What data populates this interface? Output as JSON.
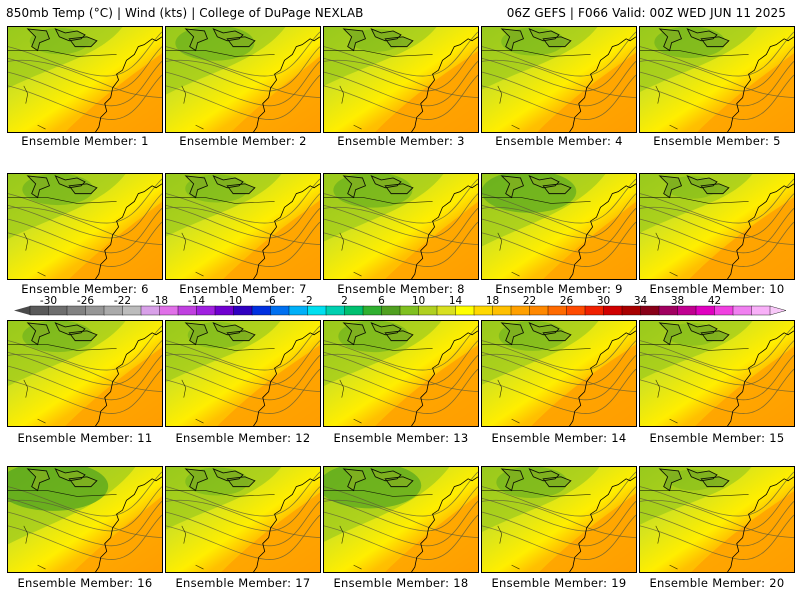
{
  "header": {
    "left": "850mb Temp (°C) | Wind (kts) | College of DuPage NEXLAB",
    "right": "06Z GEFS | F066 Valid: 00Z WED JUN 11 2025"
  },
  "members": [
    {
      "label": "Ensemble Member: 1",
      "warmth": 0.55,
      "cool_core": 0.3
    },
    {
      "label": "Ensemble Member: 2",
      "warmth": 0.35,
      "cool_core": 0.55
    },
    {
      "label": "Ensemble Member: 3",
      "warmth": 0.7,
      "cool_core": 0.2
    },
    {
      "label": "Ensemble Member: 4",
      "warmth": 0.6,
      "cool_core": 0.35
    },
    {
      "label": "Ensemble Member: 5",
      "warmth": 0.55,
      "cool_core": 0.45
    },
    {
      "label": "Ensemble Member: 6",
      "warmth": 0.45,
      "cool_core": 0.45
    },
    {
      "label": "Ensemble Member: 7",
      "warmth": 0.55,
      "cool_core": 0.35
    },
    {
      "label": "Ensemble Member: 8",
      "warmth": 0.45,
      "cool_core": 0.55
    },
    {
      "label": "Ensemble Member: 9",
      "warmth": 0.45,
      "cool_core": 0.75
    },
    {
      "label": "Ensemble Member: 10",
      "warmth": 0.75,
      "cool_core": 0.2
    },
    {
      "label": "Ensemble Member: 11",
      "warmth": 0.55,
      "cool_core": 0.45
    },
    {
      "label": "Ensemble Member: 12",
      "warmth": 0.7,
      "cool_core": 0.3
    },
    {
      "label": "Ensemble Member: 13",
      "warmth": 0.7,
      "cool_core": 0.45
    },
    {
      "label": "Ensemble Member: 14",
      "warmth": 0.75,
      "cool_core": 0.4
    },
    {
      "label": "Ensemble Member: 15",
      "warmth": 0.6,
      "cool_core": 0.2
    },
    {
      "label": "Ensemble Member: 16",
      "warmth": 0.35,
      "cool_core": 0.95
    },
    {
      "label": "Ensemble Member: 17",
      "warmth": 0.6,
      "cool_core": 0.35
    },
    {
      "label": "Ensemble Member: 18",
      "warmth": 0.45,
      "cool_core": 0.85
    },
    {
      "label": "Ensemble Member: 19",
      "warmth": 0.55,
      "cool_core": 0.45
    },
    {
      "label": "Ensemble Member: 20",
      "warmth": 0.7,
      "cool_core": 0.15
    }
  ],
  "colorbar": {
    "tick_labels": [
      "-30",
      "-26",
      "-22",
      "-18",
      "-14",
      "-10",
      "-6",
      "-2",
      "2",
      "6",
      "10",
      "14",
      "18",
      "22",
      "26",
      "30",
      "34",
      "38",
      "42"
    ],
    "colors": [
      "#5a5a5a",
      "#6e6e6e",
      "#828282",
      "#969696",
      "#aaaaaa",
      "#bcbcbc",
      "#d8a0e8",
      "#e070e8",
      "#c040e0",
      "#a020e0",
      "#7000d0",
      "#3000c0",
      "#0030e0",
      "#0070f0",
      "#00b0f8",
      "#00e0f0",
      "#00d0b0",
      "#00c070",
      "#30b030",
      "#50a020",
      "#80c020",
      "#b0d020",
      "#d8e020",
      "#ffff00",
      "#ffd800",
      "#ffc000",
      "#ffa000",
      "#ff8800",
      "#ff6a00",
      "#ff4a00",
      "#f02000",
      "#d00000",
      "#a80000",
      "#880018",
      "#a00060",
      "#c00090",
      "#e000c0",
      "#f040e0",
      "#f080f0",
      "#f8b0f8"
    ]
  }
}
